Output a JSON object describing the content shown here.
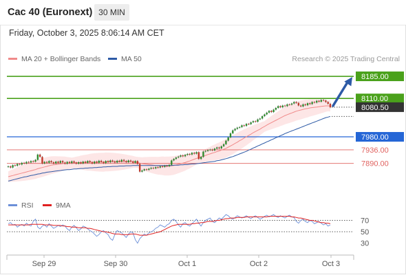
{
  "header": {
    "title": "Cac 40 (Euronext)",
    "timeframe": "30 MIN"
  },
  "timestamp": "Friday, October 3, 2025 8:06:14 AM CET",
  "credit": "Research © 2025 Trading Central",
  "legend": {
    "ma20": "MA 20 + Bollinger Bands",
    "ma50": "MA 50",
    "rsi": "RSI",
    "ma9": "9MA"
  },
  "colors": {
    "bull_level": "#4aa11b",
    "support_level": "#2566d6",
    "weak_level": "#e0625f",
    "current_price": "#333333",
    "ma20": "#f08a8a",
    "ma50": "#2d5aa6",
    "bollinger_fill": "#fde3e3",
    "arrow": "#2d5aa6",
    "rsi_line": "#6b8fd8",
    "ma9_line": "#e02020"
  },
  "chart_data": [
    {
      "type": "candlestick",
      "title": "",
      "ylim": [
        7810,
        8220
      ],
      "x_ticks": [
        "Sep 29",
        "Sep 30",
        "Oct 1",
        "Oct 2",
        "Oct 3"
      ],
      "current_price": 8080.5,
      "levels": [
        {
          "value": 8185.0,
          "label": "8185.00",
          "kind": "resistance",
          "color": "#4aa11b"
        },
        {
          "value": 8110.0,
          "label": "8110.00",
          "kind": "resistance",
          "color": "#4aa11b"
        },
        {
          "value": 7980.0,
          "label": "7980.00",
          "kind": "support",
          "color": "#2566d6"
        },
        {
          "value": 7936.0,
          "label": "7936.00",
          "kind": "support",
          "color": "#e0625f"
        },
        {
          "value": 7890.0,
          "label": "7890.00",
          "kind": "support",
          "color": "#e0625f"
        }
      ],
      "close": [
        7880,
        7876,
        7884,
        7882,
        7888,
        7886,
        7892,
        7890,
        7895,
        7893,
        7898,
        7896,
        7902,
        7920,
        7912,
        7890,
        7895,
        7892,
        7898,
        7894,
        7890,
        7896,
        7892,
        7898,
        7893,
        7889,
        7895,
        7891,
        7897,
        7893,
        7889,
        7894,
        7890,
        7896,
        7892,
        7898,
        7894,
        7890,
        7896,
        7892,
        7899,
        7895,
        7891,
        7898,
        7894,
        7900,
        7897,
        7893,
        7899,
        7896,
        7902,
        7898,
        7894,
        7900,
        7897,
        7892,
        7898,
        7888,
        7862,
        7866,
        7870,
        7868,
        7872,
        7875,
        7873,
        7877,
        7876,
        7880,
        7878,
        7882,
        7880,
        7885,
        7900,
        7905,
        7910,
        7913,
        7917,
        7914,
        7919,
        7922,
        7920,
        7926,
        7923,
        7928,
        7905,
        7912,
        7930,
        7932,
        7935,
        7937,
        7934,
        7940,
        7944,
        7941,
        7948,
        7955,
        7967,
        7978,
        7992,
        8002,
        8007,
        8011,
        8013,
        8019,
        8017,
        8024,
        8023,
        8029,
        8033,
        8031,
        8039,
        8042,
        8050,
        8056,
        8062,
        8068,
        8064,
        8072,
        8078,
        8084,
        8080,
        8086,
        8084,
        8090,
        8089,
        8093,
        8098,
        8095,
        8086,
        8083,
        8090,
        8087,
        8094,
        8091,
        8098,
        8096,
        8102,
        8099,
        8105,
        8103,
        8098,
        8092,
        8080
      ],
      "ma20": [
        7845,
        7847,
        7849,
        7851,
        7853,
        7855,
        7857,
        7859,
        7861,
        7863,
        7865,
        7867,
        7869,
        7872,
        7874,
        7876,
        7878,
        7880,
        7882,
        7884,
        7885,
        7886,
        7887,
        7888,
        7889,
        7890,
        7890,
        7891,
        7891,
        7892,
        7892,
        7892,
        7893,
        7893,
        7893,
        7893,
        7894,
        7894,
        7894,
        7894,
        7894,
        7894,
        7894,
        7895,
        7895,
        7895,
        7895,
        7895,
        7895,
        7895,
        7895,
        7895,
        7895,
        7895,
        7895,
        7895,
        7894,
        7893,
        7891,
        7889,
        7888,
        7887,
        7886,
        7885,
        7884,
        7883,
        7882,
        7882,
        7882,
        7881,
        7881,
        7881,
        7882,
        7883,
        7885,
        7887,
        7889,
        7891,
        7893,
        7896,
        7898,
        7901,
        7904,
        7907,
        7909,
        7912,
        7914,
        7917,
        7920,
        7922,
        7925,
        7927,
        7930,
        7932,
        7935,
        7938,
        7941,
        7945,
        7949,
        7953,
        7958,
        7962,
        7967,
        7971,
        7976,
        7980,
        7985,
        7989,
        7994,
        7998,
        8002,
        8006,
        8011,
        8015,
        8020,
        8024,
        8028,
        8032,
        8036,
        8040,
        8044,
        8048,
        8052,
        8055,
        8058,
        8061,
        8064,
        8067,
        8069,
        8071,
        8073,
        8075,
        8076,
        8078,
        8079,
        8080,
        8081,
        8082,
        8083,
        8084,
        8085,
        8085,
        8085
      ],
      "ma50": [
        7830,
        7832,
        7834,
        7836,
        7838,
        7840,
        7842,
        7844,
        7845,
        7847,
        7849,
        7850,
        7852,
        7854,
        7855,
        7857,
        7858,
        7860,
        7861,
        7862,
        7863,
        7864,
        7865,
        7866,
        7867,
        7868,
        7869,
        7869,
        7870,
        7871,
        7871,
        7872,
        7873,
        7873,
        7874,
        7874,
        7875,
        7875,
        7876,
        7876,
        7877,
        7877,
        7878,
        7878,
        7879,
        7879,
        7880,
        7880,
        7880,
        7881,
        7881,
        7881,
        7882,
        7882,
        7882,
        7883,
        7883,
        7883,
        7883,
        7883,
        7883,
        7883,
        7883,
        7883,
        7883,
        7883,
        7883,
        7883,
        7883,
        7883,
        7883,
        7883,
        7883,
        7884,
        7884,
        7884,
        7885,
        7885,
        7886,
        7886,
        7887,
        7888,
        7888,
        7889,
        7890,
        7891,
        7892,
        7893,
        7894,
        7895,
        7896,
        7897,
        7899,
        7900,
        7902,
        7904,
        7906,
        7908,
        7911,
        7913,
        7916,
        7919,
        7922,
        7925,
        7928,
        7931,
        7935,
        7938,
        7942,
        7945,
        7949,
        7952,
        7956,
        7959,
        7963,
        7966,
        7970,
        7973,
        7977,
        7980,
        7984,
        7987,
        7991,
        7994,
        7997,
        8000,
        8003,
        8006,
        8009,
        8012,
        8015,
        8018,
        8021,
        8024,
        8027,
        8030,
        8033,
        8036,
        8039,
        8042,
        8045,
        8047,
        8049
      ],
      "projection": {
        "from": 8080.5,
        "to": 8185.0
      }
    },
    {
      "type": "line",
      "title": "",
      "ylim": [
        20,
        85
      ],
      "y_ticks": [
        70,
        50,
        30
      ],
      "series": [
        {
          "name": "RSI",
          "values": [
            64,
            66,
            62,
            63,
            58,
            61,
            63,
            60,
            65,
            62,
            60,
            68,
            72,
            58,
            55,
            60,
            62,
            58,
            64,
            60,
            56,
            58,
            61,
            59,
            62,
            60,
            55,
            52,
            58,
            61,
            57,
            52,
            55,
            60,
            58,
            55,
            52,
            50,
            46,
            42,
            45,
            50,
            52,
            48,
            45,
            38,
            35,
            45,
            52,
            50,
            48,
            44,
            40,
            46,
            50,
            48,
            36,
            30,
            38,
            42,
            46,
            44,
            48,
            50,
            52,
            56,
            58,
            62,
            60,
            58,
            62,
            64,
            70,
            72,
            68,
            62,
            58,
            64,
            66,
            62,
            60,
            64,
            68,
            72,
            65,
            60,
            66,
            70,
            72,
            74,
            68,
            66,
            70,
            74,
            72,
            76,
            80,
            78,
            74,
            72,
            75,
            78,
            76,
            74,
            76,
            78,
            75,
            73,
            76,
            78,
            75,
            72,
            74,
            77,
            79,
            76,
            78,
            80,
            77,
            75,
            78,
            76,
            74,
            77,
            79,
            76,
            75,
            68,
            65,
            70,
            72,
            68,
            66,
            70,
            68,
            64,
            66,
            68,
            65,
            62,
            64,
            60,
            62
          ]
        },
        {
          "name": "9MA",
          "values": [
            62,
            62,
            62,
            62,
            62,
            62,
            62,
            62,
            62,
            62,
            63,
            63,
            63,
            63,
            63,
            63,
            62,
            62,
            62,
            62,
            61,
            61,
            61,
            61,
            60,
            60,
            59,
            59,
            58,
            58,
            58,
            57,
            57,
            57,
            57,
            56,
            56,
            55,
            54,
            53,
            52,
            51,
            50,
            50,
            49,
            48,
            47,
            46,
            46,
            46,
            45,
            45,
            45,
            45,
            46,
            46,
            46,
            45,
            44,
            44,
            44,
            44,
            45,
            46,
            47,
            48,
            49,
            50,
            52,
            54,
            56,
            58,
            60,
            61,
            62,
            63,
            63,
            63,
            63,
            63,
            63,
            64,
            64,
            65,
            65,
            66,
            66,
            67,
            68,
            68,
            68,
            69,
            70,
            70,
            71,
            72,
            73,
            73,
            74,
            74,
            74,
            75,
            75,
            75,
            75,
            76,
            76,
            76,
            76,
            76,
            76,
            76,
            76,
            76,
            76,
            77,
            77,
            77,
            77,
            77,
            77,
            77,
            77,
            77,
            77,
            76,
            76,
            75,
            74,
            74,
            73,
            72,
            71,
            70,
            70,
            69,
            68,
            67,
            66,
            66,
            65,
            65,
            64
          ]
        }
      ]
    }
  ]
}
